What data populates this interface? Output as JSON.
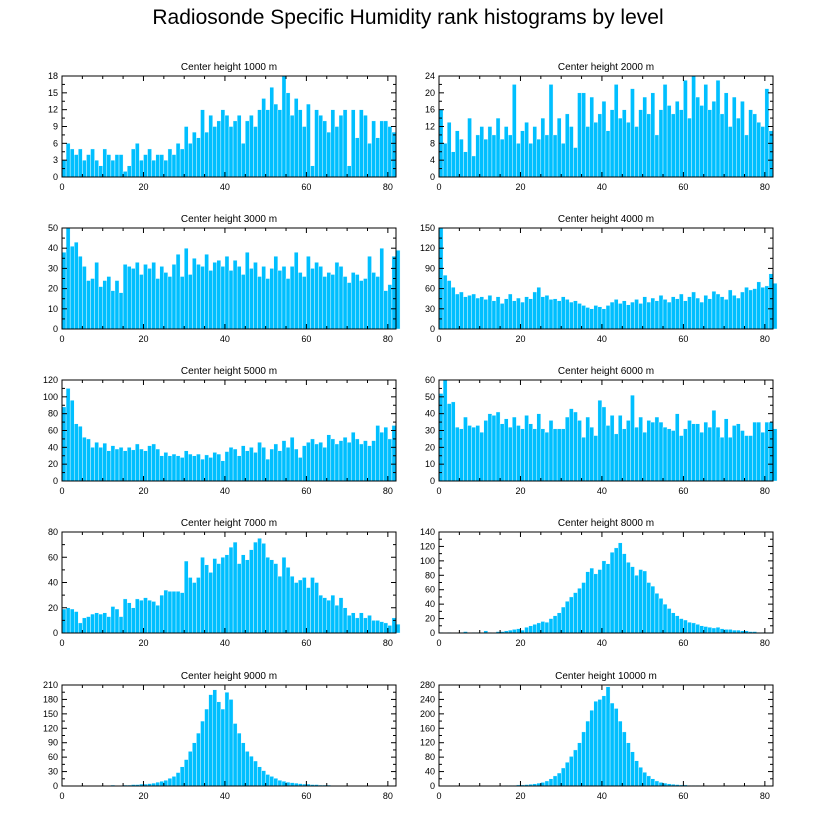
{
  "figure": {
    "title": "Radiosonde Specific Humidity rank histograms by level"
  },
  "style": {
    "bar_color": "#00bfff",
    "bar_edge": "#ffffff",
    "axis_color": "#000000"
  },
  "chart_data": [
    {
      "type": "bar",
      "title": "Center height 1000 m",
      "xlabel": "",
      "ylabel": "",
      "xlim": [
        0,
        82
      ],
      "ylim": [
        0,
        18
      ],
      "xticks": [
        0,
        20,
        40,
        60,
        80
      ],
      "yticks": [
        0,
        3,
        6,
        9,
        12,
        15,
        18
      ],
      "values": [
        3,
        6,
        5,
        4,
        5,
        3,
        4,
        5,
        3,
        2,
        5,
        4,
        3,
        4,
        4,
        1,
        2,
        5,
        6,
        3,
        4,
        5,
        3,
        4,
        4,
        3,
        5,
        4,
        6,
        5,
        9,
        6,
        8,
        7,
        12,
        8,
        11,
        9,
        10,
        12,
        11,
        9,
        10,
        11,
        6,
        10,
        11,
        9,
        12,
        14,
        12,
        16,
        13,
        12,
        18,
        15,
        11,
        14,
        12,
        9,
        13,
        2,
        12,
        11,
        10,
        8,
        12,
        9,
        11,
        12,
        2,
        12,
        7,
        12,
        11,
        6,
        10,
        7,
        10,
        10,
        9,
        8
      ]
    },
    {
      "type": "bar",
      "title": "Center height 2000 m",
      "xlabel": "",
      "ylabel": "",
      "xlim": [
        0,
        82
      ],
      "ylim": [
        0,
        24
      ],
      "xticks": [
        0,
        20,
        40,
        60,
        80
      ],
      "yticks": [
        0,
        4,
        8,
        12,
        16,
        20,
        24
      ],
      "values": [
        16,
        8,
        13,
        6,
        11,
        9,
        6,
        14,
        5,
        10,
        12,
        9,
        12,
        10,
        14,
        9,
        12,
        10,
        22,
        8,
        11,
        13,
        8,
        12,
        9,
        14,
        10,
        22,
        10,
        14,
        8,
        15,
        12,
        7,
        20,
        20,
        12,
        19,
        13,
        15,
        18,
        11,
        16,
        22,
        14,
        16,
        13,
        21,
        12,
        16,
        19,
        15,
        20,
        10,
        16,
        22,
        17,
        15,
        18,
        16,
        23,
        14,
        24,
        19,
        17,
        22,
        16,
        18,
        23,
        15,
        20,
        12,
        19,
        14,
        18,
        10,
        16,
        15,
        13,
        12,
        21,
        11
      ]
    },
    {
      "type": "bar",
      "title": "Center height 3000 m",
      "xlabel": "",
      "ylabel": "",
      "xlim": [
        0,
        82
      ],
      "ylim": [
        0,
        50
      ],
      "xticks": [
        0,
        20,
        40,
        60,
        80
      ],
      "yticks": [
        0,
        10,
        20,
        30,
        40,
        50
      ],
      "values": [
        38,
        50,
        41,
        43,
        36,
        31,
        24,
        25,
        33,
        21,
        24,
        26,
        19,
        24,
        18,
        32,
        31,
        30,
        33,
        27,
        32,
        30,
        33,
        25,
        31,
        28,
        26,
        32,
        37,
        26,
        40,
        27,
        35,
        32,
        31,
        37,
        29,
        33,
        34,
        31,
        36,
        29,
        34,
        31,
        27,
        38,
        30,
        33,
        26,
        31,
        25,
        30,
        36,
        29,
        31,
        25,
        31,
        38,
        28,
        26,
        36,
        30,
        33,
        31,
        26,
        28,
        27,
        33,
        31,
        26,
        23,
        28,
        27,
        24,
        25,
        36,
        28,
        26,
        40,
        19,
        22,
        36,
        39
      ]
    },
    {
      "type": "bar",
      "title": "Center height 4000 m",
      "xlabel": "",
      "ylabel": "",
      "xlim": [
        0,
        82
      ],
      "ylim": [
        0,
        150
      ],
      "xticks": [
        0,
        20,
        40,
        60,
        80
      ],
      "yticks": [
        0,
        30,
        60,
        90,
        120,
        150
      ],
      "values": [
        150,
        80,
        72,
        62,
        52,
        55,
        48,
        50,
        52,
        46,
        48,
        44,
        50,
        42,
        48,
        38,
        45,
        52,
        42,
        46,
        40,
        48,
        45,
        55,
        62,
        48,
        50,
        44,
        45,
        42,
        48,
        44,
        40,
        42,
        38,
        35,
        32,
        30,
        35,
        33,
        30,
        35,
        40,
        44,
        38,
        42,
        36,
        40,
        44,
        38,
        48,
        40,
        46,
        42,
        50,
        44,
        40,
        48,
        45,
        52,
        42,
        48,
        55,
        46,
        40,
        50,
        45,
        56,
        52,
        48,
        44,
        58,
        50,
        46,
        55,
        62,
        58,
        60,
        70,
        62,
        64,
        82,
        68
      ]
    },
    {
      "type": "bar",
      "title": "Center height 5000 m",
      "xlabel": "",
      "ylabel": "",
      "xlim": [
        0,
        82
      ],
      "ylim": [
        0,
        120
      ],
      "xticks": [
        0,
        20,
        40,
        60,
        80
      ],
      "yticks": [
        0,
        20,
        40,
        60,
        80,
        100,
        120
      ],
      "values": [
        88,
        110,
        96,
        68,
        65,
        52,
        50,
        40,
        46,
        40,
        45,
        36,
        42,
        38,
        40,
        36,
        40,
        37,
        44,
        38,
        36,
        42,
        44,
        38,
        30,
        34,
        30,
        32,
        30,
        28,
        36,
        32,
        30,
        32,
        26,
        31,
        28,
        34,
        32,
        24,
        35,
        40,
        38,
        30,
        42,
        36,
        40,
        34,
        46,
        40,
        26,
        38,
        44,
        36,
        48,
        40,
        52,
        38,
        28,
        42,
        46,
        50,
        44,
        46,
        40,
        55,
        50,
        44,
        48,
        52,
        46,
        58,
        50,
        44,
        48,
        42,
        48,
        66,
        58,
        64,
        50,
        66
      ]
    },
    {
      "type": "bar",
      "title": "Center height 6000 m",
      "xlabel": "",
      "ylabel": "",
      "xlim": [
        0,
        82
      ],
      "ylim": [
        0,
        60
      ],
      "xticks": [
        0,
        20,
        40,
        60,
        80
      ],
      "yticks": [
        0,
        10,
        20,
        30,
        40,
        50,
        60
      ],
      "values": [
        52,
        60,
        46,
        47,
        32,
        31,
        38,
        33,
        32,
        33,
        29,
        36,
        40,
        39,
        41,
        34,
        37,
        32,
        38,
        33,
        31,
        39,
        34,
        31,
        40,
        31,
        29,
        36,
        31,
        31,
        31,
        38,
        43,
        41,
        36,
        26,
        38,
        32,
        27,
        48,
        44,
        33,
        39,
        28,
        39,
        31,
        36,
        51,
        32,
        38,
        29,
        36,
        35,
        38,
        35,
        32,
        31,
        30,
        40,
        27,
        31,
        36,
        34,
        34,
        29,
        35,
        32,
        42,
        32,
        26,
        37,
        26,
        33,
        34,
        30,
        27,
        27,
        35,
        35,
        29,
        35,
        35,
        31
      ]
    },
    {
      "type": "bar",
      "title": "Center height 7000 m",
      "xlabel": "",
      "ylabel": "",
      "xlim": [
        0,
        82
      ],
      "ylim": [
        0,
        80
      ],
      "xticks": [
        0,
        20,
        40,
        60,
        80
      ],
      "yticks": [
        0,
        20,
        40,
        60,
        80
      ],
      "values": [
        19,
        20,
        19,
        17,
        8,
        12,
        13,
        15,
        16,
        15,
        16,
        13,
        21,
        19,
        13,
        27,
        24,
        20,
        27,
        26,
        28,
        26,
        25,
        22,
        30,
        34,
        33,
        33,
        33,
        32,
        57,
        44,
        40,
        44,
        60,
        54,
        48,
        59,
        55,
        60,
        62,
        68,
        72,
        55,
        62,
        58,
        66,
        72,
        75,
        71,
        60,
        58,
        55,
        45,
        60,
        52,
        45,
        40,
        42,
        44,
        36,
        44,
        40,
        30,
        28,
        26,
        30,
        22,
        28,
        20,
        14,
        16,
        12,
        16,
        12,
        14,
        10,
        10,
        9,
        8,
        6,
        12,
        7
      ]
    },
    {
      "type": "bar",
      "title": "Center height 8000 m",
      "xlabel": "",
      "ylabel": "",
      "xlim": [
        0,
        82
      ],
      "ylim": [
        0,
        140
      ],
      "xticks": [
        0,
        20,
        40,
        60,
        80
      ],
      "yticks": [
        0,
        20,
        40,
        60,
        80,
        100,
        120,
        140
      ],
      "values": [
        1,
        0,
        1,
        0,
        0,
        1,
        2,
        0,
        1,
        1,
        0,
        3,
        1,
        0,
        2,
        2,
        3,
        4,
        5,
        6,
        4,
        8,
        10,
        12,
        14,
        16,
        15,
        20,
        24,
        28,
        36,
        44,
        50,
        56,
        62,
        70,
        85,
        90,
        82,
        88,
        100,
        96,
        112,
        118,
        125,
        110,
        98,
        92,
        80,
        88,
        86,
        70,
        65,
        55,
        48,
        40,
        34,
        28,
        24,
        20,
        18,
        15,
        14,
        12,
        10,
        9,
        8,
        7,
        8,
        6,
        5,
        5,
        4,
        4,
        3,
        3,
        2,
        2,
        1,
        1,
        1,
        1,
        0
      ]
    },
    {
      "type": "bar",
      "title": "Center height 9000 m",
      "xlabel": "",
      "ylabel": "",
      "xlim": [
        0,
        82
      ],
      "ylim": [
        0,
        210
      ],
      "xticks": [
        0,
        20,
        40,
        60,
        80
      ],
      "yticks": [
        0,
        30,
        60,
        90,
        120,
        150,
        180,
        210
      ],
      "values": [
        0,
        0,
        0,
        0,
        0,
        0,
        0,
        0,
        1,
        0,
        1,
        1,
        2,
        1,
        1,
        2,
        2,
        3,
        3,
        4,
        4,
        5,
        6,
        8,
        10,
        12,
        16,
        20,
        28,
        40,
        55,
        72,
        90,
        110,
        135,
        160,
        190,
        200,
        175,
        160,
        195,
        180,
        130,
        110,
        90,
        72,
        62,
        52,
        40,
        32,
        24,
        20,
        16,
        12,
        10,
        8,
        7,
        6,
        5,
        4,
        4,
        3,
        3,
        2,
        2,
        2,
        1,
        1,
        1,
        1,
        1,
        1,
        1,
        0,
        0,
        0,
        0,
        0,
        0,
        0,
        0,
        0
      ]
    },
    {
      "type": "bar",
      "title": "Center height 10000 m",
      "xlabel": "",
      "ylabel": "",
      "xlim": [
        0,
        82
      ],
      "ylim": [
        0,
        280
      ],
      "xticks": [
        0,
        20,
        40,
        60,
        80
      ],
      "yticks": [
        0,
        40,
        80,
        120,
        160,
        200,
        240,
        280
      ],
      "values": [
        0,
        0,
        0,
        0,
        0,
        0,
        0,
        0,
        1,
        0,
        0,
        1,
        0,
        1,
        1,
        1,
        2,
        2,
        2,
        3,
        3,
        4,
        5,
        6,
        8,
        10,
        14,
        20,
        28,
        36,
        50,
        66,
        82,
        100,
        120,
        150,
        180,
        210,
        235,
        240,
        250,
        275,
        230,
        215,
        180,
        150,
        120,
        95,
        70,
        52,
        38,
        28,
        20,
        14,
        10,
        8,
        6,
        5,
        4,
        3,
        3,
        2,
        2,
        2,
        1,
        1,
        1,
        1,
        1,
        1,
        1,
        0,
        0,
        0,
        0,
        0,
        0,
        0,
        0,
        0,
        0,
        0
      ]
    }
  ]
}
